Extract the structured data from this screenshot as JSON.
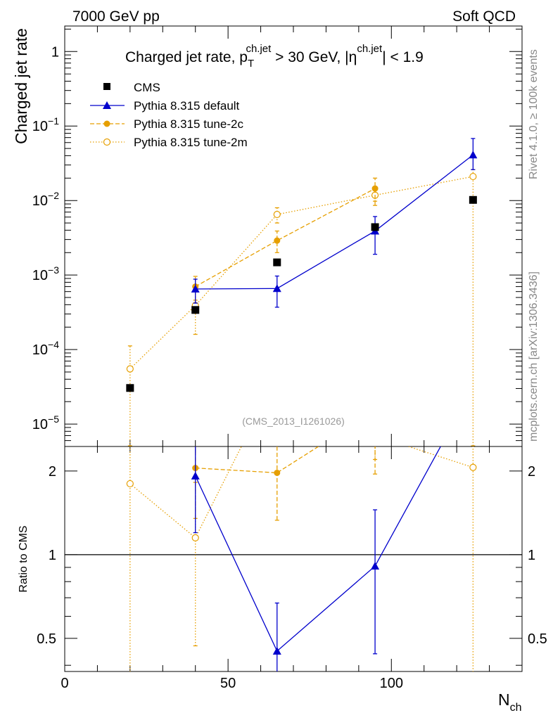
{
  "header": {
    "energy": "7000 GeV pp",
    "process": "Soft QCD",
    "side_rivet": "Rivet 4.1.0, ≥ 100k events",
    "side_mcplots": "mcplots.cern.ch [arXiv:1306.3436]",
    "analysis_id": "(CMS_2013_I1261026)"
  },
  "chart_data": [
    {
      "type": "line",
      "scale": "log",
      "title_parts": {
        "main": "Charged jet rate, p",
        "pt_sub": "T",
        "pt_sup": "ch.jet",
        "cut": " > 30 GeV,  |η",
        "eta_sup": "ch.jet",
        "eta_cut": "| < 1.9"
      },
      "ylabel": "Charged jet rate",
      "xlim": [
        0,
        140
      ],
      "ylim": [
        5e-06,
        2.2
      ],
      "y_ticks": [
        {
          "value": 1,
          "mantissa": "1",
          "exp": ""
        },
        {
          "value": 0.1,
          "mantissa": "10",
          "exp": "−1"
        },
        {
          "value": 0.01,
          "mantissa": "10",
          "exp": "−2"
        },
        {
          "value": 0.001,
          "mantissa": "10",
          "exp": "−3"
        },
        {
          "value": 0.0001,
          "mantissa": "10",
          "exp": "−4"
        },
        {
          "value": 1e-05,
          "mantissa": "10",
          "exp": "−5"
        }
      ],
      "legend": [
        {
          "label": "CMS",
          "series": "cms"
        },
        {
          "label": "Pythia 8.315 default",
          "series": "default"
        },
        {
          "label": "Pythia 8.315 tune-2c",
          "series": "tune2c"
        },
        {
          "label": "Pythia 8.315 tune-2m",
          "series": "tune2m"
        }
      ],
      "series": [
        {
          "key": "cms",
          "name": "CMS",
          "color": "#000000",
          "marker": "square",
          "line": "none",
          "x": [
            20,
            40,
            65,
            95,
            125
          ],
          "values": [
            3.05e-05,
            0.00034,
            0.00148,
            0.0044,
            0.0102
          ]
        },
        {
          "key": "default",
          "name": "Pythia 8.315 default",
          "color": "#0000cc",
          "marker": "triangle",
          "line": "solid",
          "x": [
            40,
            65,
            95,
            125
          ],
          "values": [
            0.00065,
            0.00066,
            0.0039,
            0.041
          ],
          "err_lo": [
            0.00042,
            0.00037,
            0.0019,
            0.026
          ],
          "err_hi": [
            0.00088,
            0.00097,
            0.0061,
            0.068
          ]
        },
        {
          "key": "tune2c",
          "name": "Pythia 8.315 tune-2c",
          "color": "#e69f00",
          "marker": "circle",
          "line": "dashed",
          "x": [
            40,
            65,
            95
          ],
          "values": [
            0.0007,
            0.0029,
            0.0145
          ],
          "err_lo": [
            0.00046,
            0.002,
            0.0086
          ],
          "err_hi": [
            0.00096,
            0.0039,
            0.02
          ]
        },
        {
          "key": "tune2m",
          "name": "Pythia 8.315 tune-2m",
          "color": "#e69f00",
          "marker": "open-circle",
          "line": "dotted",
          "x": [
            20,
            40,
            65,
            95,
            125
          ],
          "values": [
            5.5e-05,
            0.00039,
            0.0065,
            0.0118,
            0.021
          ],
          "err_lo": [
            5.1e-06,
            0.00016,
            0.005,
            0.0098,
            5.1e-06
          ],
          "err_hi": [
            0.000112,
            0.00062,
            0.008,
            0.0142,
            0.026
          ]
        }
      ]
    },
    {
      "type": "line",
      "scale": "log",
      "ylabel": "Ratio to CMS",
      "xlabel_main": "N",
      "xlabel_sub": "ch",
      "xlim": [
        0,
        140
      ],
      "ylim": [
        0.38,
        2.45
      ],
      "x_ticks": [
        0,
        50,
        100
      ],
      "y_ticks": [
        0.5,
        1,
        2
      ],
      "y_tick_labels": [
        "0.5",
        "1",
        "2"
      ],
      "reference": 1,
      "series": [
        {
          "key": "default",
          "color": "#0000cc",
          "marker": "triangle",
          "line": "solid",
          "x": [
            40,
            65,
            95,
            125
          ],
          "values": [
            1.92,
            0.45,
            0.91,
            4.0
          ],
          "err_lo": [
            1.2,
            0.3,
            0.44,
            2.5
          ],
          "err_hi": [
            2.5,
            0.67,
            1.45,
            6.5
          ]
        },
        {
          "key": "tune2c",
          "color": "#e69f00",
          "marker": "circle",
          "line": "dashed",
          "x": [
            40,
            65,
            95
          ],
          "values": [
            2.05,
            1.97,
            3.3
          ],
          "err_lo": [
            1.35,
            1.33,
            1.95
          ],
          "err_hi": [
            2.82,
            2.64,
            4.6
          ]
        },
        {
          "key": "tune2m",
          "color": "#e69f00",
          "marker": "open-circle",
          "line": "dotted",
          "x": [
            20,
            40,
            65,
            95,
            125
          ],
          "values": [
            1.8,
            1.15,
            4.4,
            2.68,
            2.06
          ],
          "err_lo": [
            0.3,
            0.47,
            3.4,
            2.2,
            0.3
          ],
          "err_hi": [
            3.7,
            1.82,
            5.4,
            3.2,
            2.55
          ]
        }
      ]
    }
  ]
}
